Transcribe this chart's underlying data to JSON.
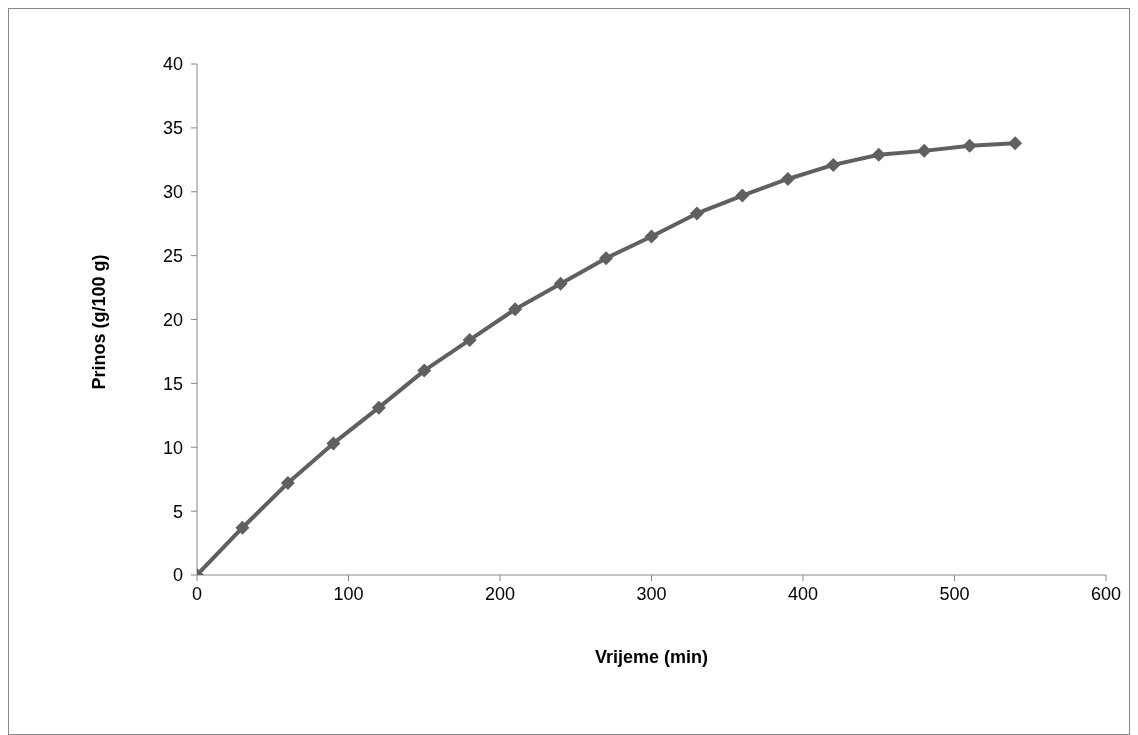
{
  "chart_data": {
    "type": "line",
    "xlabel": "Vrijeme (min)",
    "ylabel": "Prinos (g/100 g)",
    "x": [
      0,
      30,
      60,
      90,
      120,
      150,
      180,
      210,
      240,
      270,
      300,
      330,
      360,
      390,
      420,
      450,
      480,
      510,
      540
    ],
    "series": [
      {
        "color": "#606060",
        "values": [
          0,
          3.7,
          7.2,
          10.3,
          13.1,
          16.0,
          18.4,
          20.8,
          22.8,
          24.8,
          26.5,
          28.3,
          29.7,
          31.0,
          32.1,
          32.9,
          33.2,
          33.6,
          33.8
        ]
      }
    ],
    "xlim": [
      0,
      600
    ],
    "xticks": [
      0,
      100,
      200,
      300,
      400,
      500,
      600
    ],
    "ylim": [
      0,
      40
    ],
    "yticks": [
      0,
      5,
      10,
      15,
      20,
      25,
      30,
      35,
      40
    ],
    "grid": false,
    "legend": false,
    "marker": "diamond",
    "line_style": "solid"
  }
}
